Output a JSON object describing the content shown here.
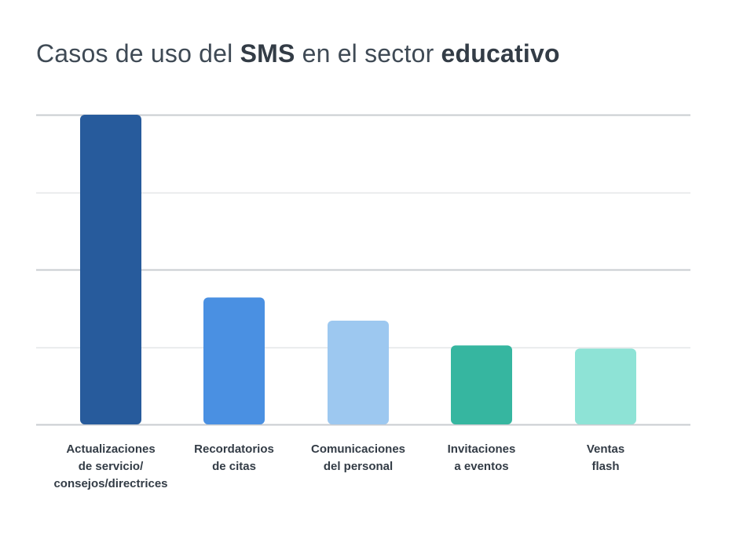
{
  "title": {
    "part1": "Casos de uso del ",
    "bold1": "SMS",
    "part2": " en el sector ",
    "bold2": "educativo"
  },
  "chart_data": {
    "type": "bar",
    "categories": [
      "Actualizaciones de servicio/ consejos/directrices",
      "Recordatorios de citas",
      "Comunicaciones del personal",
      "Invitaciones a eventos",
      "Ventas flash"
    ],
    "category_lines": [
      [
        "Actualizaciones",
        "de servicio/",
        "consejos/directrices"
      ],
      [
        "Recordatorios",
        "de citas"
      ],
      [
        "Comunicaciones",
        "del personal"
      ],
      [
        "Invitaciones",
        "a eventos"
      ],
      [
        "Ventas",
        "flash"
      ]
    ],
    "values": [
      100,
      41,
      33.5,
      25.5,
      24.5
    ],
    "colors": [
      "#275b9c",
      "#4a90e2",
      "#9dc8f0",
      "#36b6a0",
      "#8ee3d6"
    ],
    "ylim": [
      0,
      100
    ],
    "grid": true,
    "legend": "none",
    "xlabel": "",
    "ylabel": ""
  }
}
